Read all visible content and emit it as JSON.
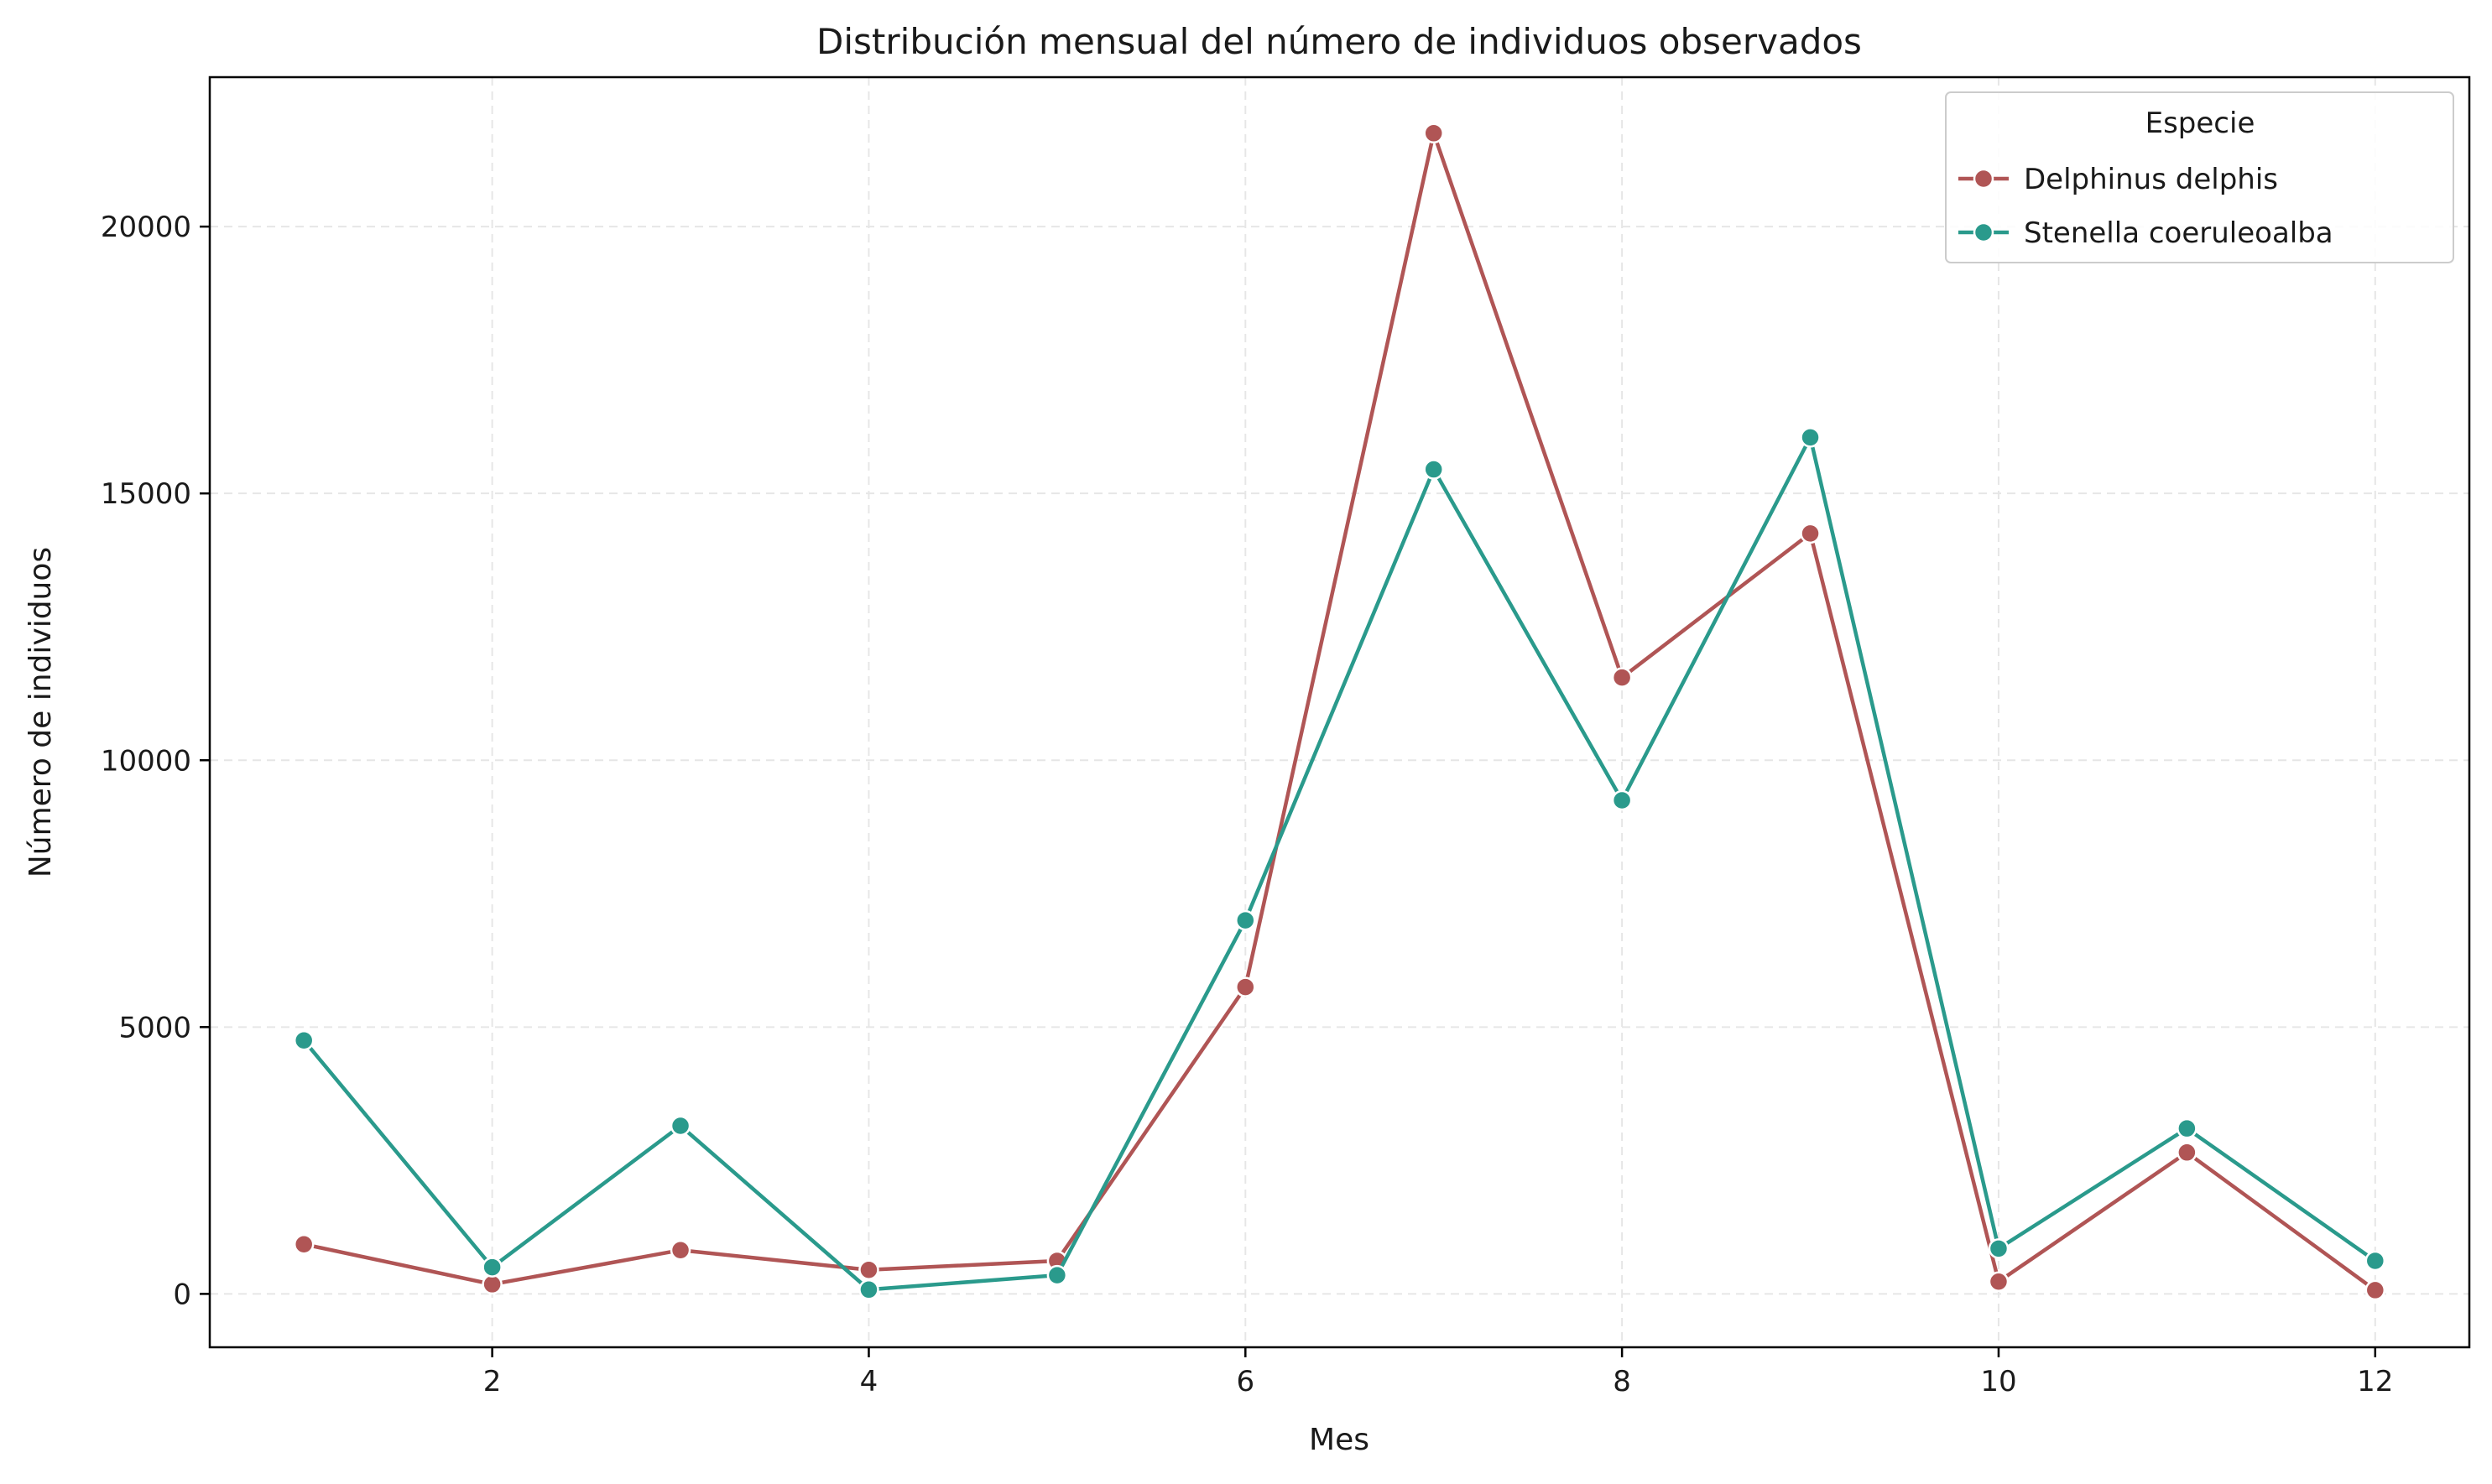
{
  "chart_data": {
    "type": "line",
    "title": "Distribución mensual del número de individuos observados",
    "xlabel": "Mes",
    "ylabel": "Número de individuos",
    "x": [
      1,
      2,
      3,
      4,
      5,
      6,
      7,
      8,
      9,
      10,
      11,
      12
    ],
    "xlim": [
      0.5,
      12.5
    ],
    "ylim": [
      -1000,
      22800
    ],
    "x_ticks": [
      2,
      4,
      6,
      8,
      10,
      12
    ],
    "y_ticks": [
      0,
      5000,
      10000,
      15000,
      20000
    ],
    "grid": true,
    "legend": {
      "title": "Especie",
      "placement": "top-right"
    },
    "series": [
      {
        "name": "Delphinus delphis",
        "color": "#b05555",
        "values": [
          930,
          180,
          820,
          450,
          620,
          5750,
          21750,
          11550,
          14250,
          230,
          2650,
          70
        ]
      },
      {
        "name": "Stenella coeruleoalba",
        "color": "#2a9a8c",
        "values": [
          4750,
          500,
          3150,
          80,
          350,
          7000,
          15450,
          9250,
          16050,
          850,
          3100,
          620
        ]
      }
    ]
  }
}
